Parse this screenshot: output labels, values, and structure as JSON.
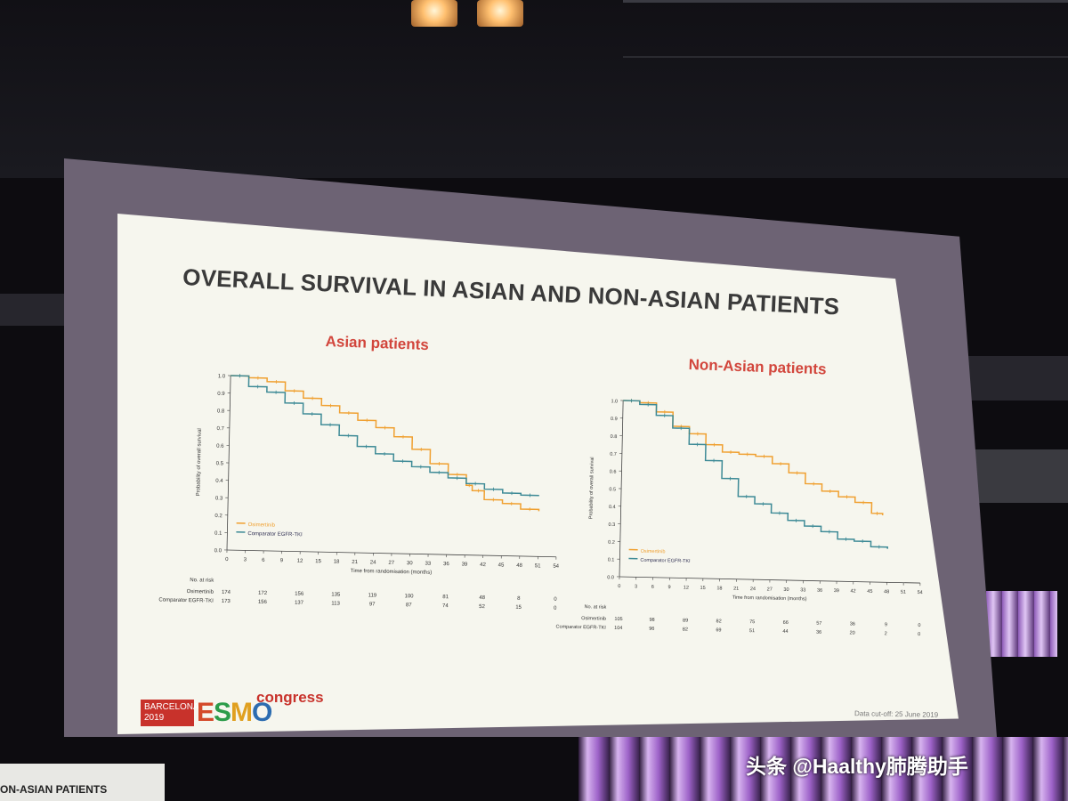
{
  "slide": {
    "title": "OVERALL SURVIVAL IN ASIAN AND NON-ASIAN PATIENTS",
    "data_cutoff": "Data cut-off: 25 June 2019",
    "logo": {
      "box_line1": "BARCELONA",
      "box_line2": "2019",
      "esmo": "ESMO",
      "congress": "congress"
    }
  },
  "overlay": {
    "watermark": "头条 @Haalthy肺腾助手",
    "second_screen_text": "ON-ASIAN PATIENTS"
  },
  "colors": {
    "osimertinib": "#f0a030",
    "comparator": "#3d8a96",
    "title_red": "#d2463c"
  },
  "chart_data": [
    {
      "type": "line",
      "title": "Asian patients",
      "xlabel": "Time from randomisation (months)",
      "ylabel": "Probability of overall survival",
      "xticks": [
        0,
        3,
        6,
        9,
        12,
        15,
        18,
        21,
        24,
        27,
        30,
        33,
        36,
        39,
        42,
        45,
        48,
        51,
        54
      ],
      "yticks": [
        0.0,
        0.1,
        0.2,
        0.3,
        0.4,
        0.5,
        0.6,
        0.7,
        0.8,
        0.9,
        1.0
      ],
      "xlim": [
        0,
        54
      ],
      "ylim": [
        0,
        1.0
      ],
      "legend_position": "bottom-left",
      "series": [
        {
          "name": "Osimertinib",
          "color": "#f0a030",
          "x": [
            0,
            3,
            6,
            9,
            12,
            15,
            18,
            21,
            24,
            27,
            30,
            33,
            36,
            39,
            40,
            42,
            45,
            48,
            51
          ],
          "y": [
            1.0,
            0.99,
            0.97,
            0.92,
            0.88,
            0.84,
            0.8,
            0.76,
            0.72,
            0.67,
            0.6,
            0.52,
            0.46,
            0.4,
            0.37,
            0.32,
            0.3,
            0.27,
            0.26
          ]
        },
        {
          "name": "Comparator EGFR-TKI",
          "color": "#3d8a96",
          "x": [
            0,
            3,
            6,
            9,
            12,
            15,
            18,
            21,
            24,
            27,
            30,
            33,
            36,
            39,
            42,
            45,
            48,
            51
          ],
          "y": [
            1.0,
            0.94,
            0.91,
            0.85,
            0.79,
            0.73,
            0.67,
            0.61,
            0.57,
            0.53,
            0.5,
            0.47,
            0.44,
            0.41,
            0.38,
            0.36,
            0.35,
            0.35
          ]
        }
      ],
      "risk_table": {
        "header": "No. at risk",
        "rows": [
          {
            "label": "Osimertinib",
            "values": [
              "174",
              "172",
              "156",
              "135",
              "119",
              "100",
              "81",
              "48",
              "8",
              "0"
            ]
          },
          {
            "label": "Comparator EGFR-TKI",
            "values": [
              "173",
              "156",
              "137",
              "113",
              "97",
              "87",
              "74",
              "52",
              "15",
              "0"
            ]
          }
        ]
      }
    },
    {
      "type": "line",
      "title": "Non-Asian patients",
      "xlabel": "Time from randomisation (months)",
      "ylabel": "Probability of overall survival",
      "xticks": [
        0,
        3,
        6,
        9,
        12,
        15,
        18,
        21,
        24,
        27,
        30,
        33,
        36,
        39,
        42,
        45,
        48,
        51,
        54
      ],
      "yticks": [
        0.0,
        0.1,
        0.2,
        0.3,
        0.4,
        0.5,
        0.6,
        0.7,
        0.8,
        0.9,
        1.0
      ],
      "xlim": [
        0,
        54
      ],
      "ylim": [
        0,
        1.0
      ],
      "legend_position": "bottom-left",
      "series": [
        {
          "name": "Osimertinib",
          "color": "#f0a030",
          "x": [
            0,
            3,
            6,
            9,
            12,
            15,
            18,
            21,
            24,
            27,
            30,
            33,
            36,
            39,
            42,
            45,
            47
          ],
          "y": [
            1.0,
            0.99,
            0.94,
            0.86,
            0.82,
            0.76,
            0.72,
            0.71,
            0.7,
            0.66,
            0.61,
            0.55,
            0.51,
            0.48,
            0.45,
            0.39,
            0.38
          ]
        },
        {
          "name": "Comparator EGFR-TKI",
          "color": "#3d8a96",
          "x": [
            0,
            3,
            6,
            9,
            12,
            15,
            18,
            21,
            24,
            27,
            30,
            33,
            36,
            39,
            42,
            45,
            48
          ],
          "y": [
            1.0,
            0.98,
            0.92,
            0.85,
            0.76,
            0.67,
            0.57,
            0.47,
            0.43,
            0.38,
            0.34,
            0.31,
            0.28,
            0.24,
            0.23,
            0.2,
            0.19
          ]
        }
      ],
      "risk_table": {
        "header": "No. at risk",
        "rows": [
          {
            "label": "Osimertinib",
            "values": [
              "105",
              "98",
              "89",
              "82",
              "75",
              "66",
              "57",
              "36",
              "9",
              "0"
            ]
          },
          {
            "label": "Comparator EGFR-TKI",
            "values": [
              "104",
              "96",
              "82",
              "69",
              "51",
              "44",
              "36",
              "20",
              "2",
              "0"
            ]
          }
        ]
      }
    }
  ]
}
